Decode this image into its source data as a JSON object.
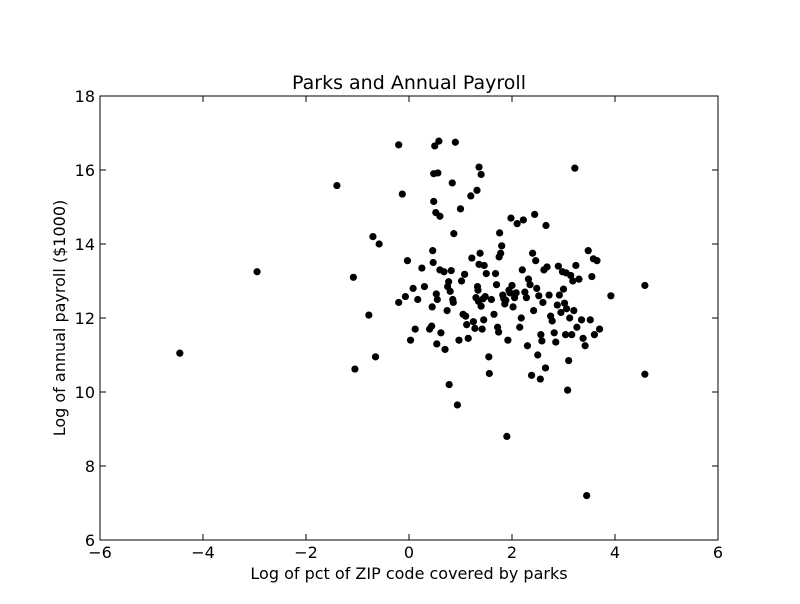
{
  "chart_data": {
    "type": "scatter",
    "title": "Parks and Annual Payroll",
    "xlabel": "Log of pct of ZIP code covered by parks",
    "ylabel": "Log of annual payroll ($1000)",
    "xlim": [
      -6,
      6
    ],
    "ylim": [
      6,
      18
    ],
    "xticks": [
      -6,
      -4,
      -2,
      0,
      2,
      4,
      6
    ],
    "yticks": [
      6,
      8,
      10,
      12,
      14,
      16,
      18
    ],
    "xtick_labels": [
      "−6",
      "−4",
      "−2",
      "0",
      "2",
      "4",
      "6"
    ],
    "ytick_labels": [
      "6",
      "8",
      "10",
      "12",
      "14",
      "16",
      "18"
    ],
    "grid": false,
    "marker_color": "#000000",
    "points": [
      [
        -4.45,
        11.05
      ],
      [
        -2.95,
        13.25
      ],
      [
        -1.4,
        15.58
      ],
      [
        -1.08,
        13.1
      ],
      [
        -1.05,
        10.62
      ],
      [
        -0.78,
        12.08
      ],
      [
        -0.7,
        14.2
      ],
      [
        -0.65,
        10.95
      ],
      [
        -0.58,
        14.0
      ],
      [
        -0.2,
        16.68
      ],
      [
        -0.2,
        12.42
      ],
      [
        -0.13,
        15.35
      ],
      [
        -0.07,
        12.58
      ],
      [
        -0.03,
        13.55
      ],
      [
        0.03,
        11.4
      ],
      [
        0.08,
        12.8
      ],
      [
        0.12,
        11.7
      ],
      [
        0.17,
        12.5
      ],
      [
        0.25,
        13.35
      ],
      [
        0.3,
        12.85
      ],
      [
        0.4,
        11.7
      ],
      [
        0.44,
        11.78
      ],
      [
        0.45,
        12.3
      ],
      [
        0.46,
        13.82
      ],
      [
        0.47,
        13.5
      ],
      [
        0.48,
        15.9
      ],
      [
        0.48,
        15.15
      ],
      [
        0.5,
        16.65
      ],
      [
        0.52,
        14.85
      ],
      [
        0.53,
        12.65
      ],
      [
        0.54,
        11.3
      ],
      [
        0.55,
        12.5
      ],
      [
        0.56,
        15.92
      ],
      [
        0.58,
        16.78
      ],
      [
        0.6,
        14.75
      ],
      [
        0.6,
        13.3
      ],
      [
        0.62,
        11.6
      ],
      [
        0.68,
        13.25
      ],
      [
        0.7,
        11.15
      ],
      [
        0.74,
        12.2
      ],
      [
        0.75,
        12.85
      ],
      [
        0.77,
        12.98
      ],
      [
        0.78,
        10.2
      ],
      [
        0.8,
        12.72
      ],
      [
        0.82,
        13.28
      ],
      [
        0.84,
        15.65
      ],
      [
        0.85,
        12.5
      ],
      [
        0.86,
        12.42
      ],
      [
        0.87,
        14.28
      ],
      [
        0.9,
        16.75
      ],
      [
        0.94,
        9.65
      ],
      [
        0.97,
        11.4
      ],
      [
        1.0,
        14.95
      ],
      [
        1.02,
        13.0
      ],
      [
        1.05,
        12.1
      ],
      [
        1.08,
        13.18
      ],
      [
        1.1,
        12.05
      ],
      [
        1.12,
        11.82
      ],
      [
        1.15,
        11.45
      ],
      [
        1.2,
        15.3
      ],
      [
        1.22,
        13.62
      ],
      [
        1.25,
        11.9
      ],
      [
        1.28,
        11.72
      ],
      [
        1.3,
        12.55
      ],
      [
        1.32,
        15.45
      ],
      [
        1.33,
        12.85
      ],
      [
        1.34,
        12.75
      ],
      [
        1.35,
        12.45
      ],
      [
        1.36,
        16.08
      ],
      [
        1.36,
        13.45
      ],
      [
        1.38,
        13.75
      ],
      [
        1.4,
        15.88
      ],
      [
        1.4,
        12.32
      ],
      [
        1.42,
        11.7
      ],
      [
        1.44,
        12.52
      ],
      [
        1.45,
        11.95
      ],
      [
        1.46,
        13.42
      ],
      [
        1.48,
        12.58
      ],
      [
        1.5,
        13.2
      ],
      [
        1.55,
        10.95
      ],
      [
        1.56,
        10.5
      ],
      [
        1.6,
        12.5
      ],
      [
        1.65,
        12.1
      ],
      [
        1.68,
        13.2
      ],
      [
        1.7,
        12.9
      ],
      [
        1.72,
        11.75
      ],
      [
        1.74,
        11.62
      ],
      [
        1.75,
        13.65
      ],
      [
        1.76,
        14.3
      ],
      [
        1.78,
        13.75
      ],
      [
        1.8,
        13.95
      ],
      [
        1.82,
        12.62
      ],
      [
        1.84,
        12.52
      ],
      [
        1.86,
        12.38
      ],
      [
        1.88,
        12.48
      ],
      [
        1.9,
        8.8
      ],
      [
        1.92,
        11.4
      ],
      [
        1.94,
        12.75
      ],
      [
        1.96,
        12.68
      ],
      [
        1.98,
        14.7
      ],
      [
        2.0,
        12.88
      ],
      [
        2.02,
        12.3
      ],
      [
        2.05,
        12.55
      ],
      [
        2.08,
        12.68
      ],
      [
        2.1,
        14.55
      ],
      [
        2.15,
        11.75
      ],
      [
        2.18,
        12.0
      ],
      [
        2.2,
        13.3
      ],
      [
        2.22,
        14.65
      ],
      [
        2.25,
        12.7
      ],
      [
        2.28,
        12.55
      ],
      [
        2.3,
        11.25
      ],
      [
        2.32,
        13.05
      ],
      [
        2.35,
        12.9
      ],
      [
        2.38,
        10.45
      ],
      [
        2.4,
        13.75
      ],
      [
        2.42,
        12.2
      ],
      [
        2.44,
        14.8
      ],
      [
        2.46,
        13.55
      ],
      [
        2.48,
        12.8
      ],
      [
        2.5,
        11.0
      ],
      [
        2.52,
        12.6
      ],
      [
        2.55,
        10.35
      ],
      [
        2.56,
        11.55
      ],
      [
        2.58,
        11.38
      ],
      [
        2.6,
        12.42
      ],
      [
        2.62,
        13.3
      ],
      [
        2.65,
        10.65
      ],
      [
        2.66,
        14.5
      ],
      [
        2.68,
        13.38
      ],
      [
        2.72,
        12.62
      ],
      [
        2.75,
        12.05
      ],
      [
        2.78,
        11.92
      ],
      [
        2.82,
        11.6
      ],
      [
        2.85,
        11.35
      ],
      [
        2.88,
        12.35
      ],
      [
        2.9,
        13.4
      ],
      [
        2.92,
        12.62
      ],
      [
        2.95,
        12.15
      ],
      [
        2.98,
        13.25
      ],
      [
        3.0,
        12.78
      ],
      [
        3.02,
        12.4
      ],
      [
        3.04,
        11.55
      ],
      [
        3.05,
        13.22
      ],
      [
        3.06,
        12.25
      ],
      [
        3.08,
        10.05
      ],
      [
        3.1,
        10.85
      ],
      [
        3.12,
        12.0
      ],
      [
        3.14,
        13.15
      ],
      [
        3.16,
        11.55
      ],
      [
        3.18,
        13.0
      ],
      [
        3.2,
        12.2
      ],
      [
        3.22,
        16.05
      ],
      [
        3.24,
        13.42
      ],
      [
        3.26,
        11.75
      ],
      [
        3.3,
        13.05
      ],
      [
        3.35,
        11.95
      ],
      [
        3.38,
        11.45
      ],
      [
        3.42,
        11.25
      ],
      [
        3.45,
        7.2
      ],
      [
        3.48,
        13.82
      ],
      [
        3.52,
        11.95
      ],
      [
        3.55,
        13.12
      ],
      [
        3.58,
        13.6
      ],
      [
        3.6,
        11.55
      ],
      [
        3.65,
        13.55
      ],
      [
        3.7,
        11.7
      ],
      [
        3.92,
        12.6
      ],
      [
        4.58,
        12.88
      ],
      [
        4.58,
        10.48
      ]
    ]
  }
}
